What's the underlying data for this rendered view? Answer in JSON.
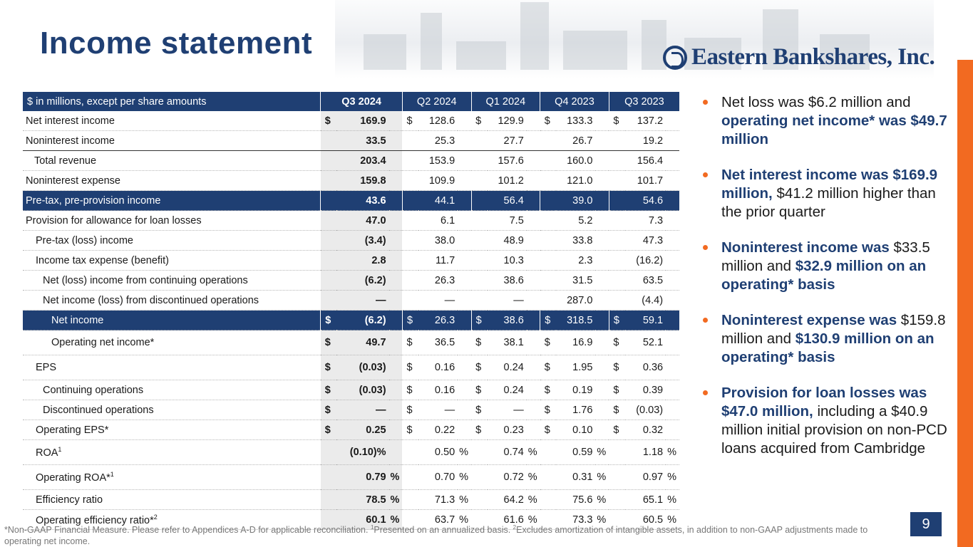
{
  "title": "Income statement",
  "logo_text": "Eastern Bankshares, Inc.",
  "page_number": "9",
  "colors": {
    "navy": "#1f3f73",
    "orange": "#f26a21",
    "shade": "#ebebeb"
  },
  "table": {
    "header": {
      "label": "$ in millions, except per share amounts",
      "cols": [
        "Q3 2024",
        "Q2 2024",
        "Q1 2024",
        "Q4 2023",
        "Q3 2023"
      ]
    },
    "rows": [
      {
        "label": "Net interest income",
        "dollar": true,
        "values": [
          "169.9",
          "128.6",
          "129.9",
          "133.3",
          "137.2"
        ]
      },
      {
        "label": "Noninterest income",
        "values": [
          "33.5",
          "25.3",
          "27.7",
          "26.7",
          "19.2"
        ]
      },
      {
        "label": "Total revenue",
        "values": [
          "203.4",
          "153.9",
          "157.6",
          "160.0",
          "156.4"
        ]
      },
      {
        "label": "Noninterest expense",
        "values": [
          "159.8",
          "109.9",
          "101.2",
          "121.0",
          "101.7"
        ]
      },
      {
        "label": "Pre-tax, pre-provision income",
        "values": [
          "43.6",
          "44.1",
          "56.4",
          "39.0",
          "54.6"
        ]
      },
      {
        "label": "Provision for allowance for loan losses",
        "values": [
          "47.0",
          "6.1",
          "7.5",
          "5.2",
          "7.3"
        ]
      },
      {
        "label": "Pre-tax (loss) income",
        "values": [
          "(3.4)",
          "38.0",
          "48.9",
          "33.8",
          "47.3"
        ]
      },
      {
        "label": "Income tax expense (benefit)",
        "values": [
          "2.8",
          "11.7",
          "10.3",
          "2.3",
          "(16.2)"
        ]
      },
      {
        "label": "Net (loss) income from continuing operations",
        "values": [
          "(6.2)",
          "26.3",
          "38.6",
          "31.5",
          "63.5"
        ]
      },
      {
        "label": "Net income (loss) from discontinued operations",
        "values": [
          "—",
          "—",
          "—",
          "287.0",
          "(4.4)"
        ]
      },
      {
        "label": "Net income",
        "dollar": true,
        "values": [
          "(6.2)",
          "26.3",
          "38.6",
          "318.5",
          "59.1"
        ]
      },
      {
        "label": "Operating net income*",
        "dollar": true,
        "values": [
          "49.7",
          "36.5",
          "38.1",
          "16.9",
          "52.1"
        ]
      },
      {
        "label": "EPS",
        "dollar": true,
        "values": [
          "(0.03)",
          "0.16",
          "0.24",
          "1.95",
          "0.36"
        ]
      },
      {
        "label": "Continuing operations",
        "dollar": true,
        "values": [
          "(0.03)",
          "0.16",
          "0.24",
          "0.19",
          "0.39"
        ]
      },
      {
        "label": "Discontinued operations",
        "dollar": true,
        "values": [
          "—",
          "—",
          "—",
          "1.76",
          "(0.03)"
        ]
      },
      {
        "label": "Operating EPS*",
        "dollar": true,
        "values": [
          "0.25",
          "0.22",
          "0.23",
          "0.10",
          "0.32"
        ]
      },
      {
        "label": "ROA",
        "sup": "1",
        "values": [
          "(0.10)%",
          "0.50",
          "0.74",
          "0.59",
          "1.18"
        ],
        "pct": [
          "",
          "%",
          "%",
          "%",
          "%"
        ]
      },
      {
        "label": "Operating ROA*",
        "sup": "1",
        "values": [
          "0.79",
          "0.70",
          "0.72",
          "0.31",
          "0.97"
        ],
        "pct": [
          "%",
          "%",
          "%",
          "%",
          "%"
        ]
      },
      {
        "label": "Efficiency ratio",
        "values": [
          "78.5",
          "71.3",
          "64.2",
          "75.6",
          "65.1"
        ],
        "pct": [
          "%",
          "%",
          "%",
          "%",
          "%"
        ]
      },
      {
        "label": "Operating efficiency ratio*",
        "sup": "2",
        "values": [
          "60.1",
          "63.7",
          "61.6",
          "73.3",
          "60.5"
        ],
        "pct": [
          "%",
          "%",
          "%",
          "%",
          "%"
        ]
      }
    ],
    "dollar_sign": "$"
  },
  "bullets": [
    [
      {
        "t": "Net loss was $6.2 million and "
      },
      {
        "t": "operating net income* was $49.7 million",
        "em": true
      }
    ],
    [
      {
        "t": "Net interest income was $169.9 million,",
        "em": true
      },
      {
        "t": " $41.2 million higher than the prior quarter"
      }
    ],
    [
      {
        "t": "Noninterest income was",
        "em": true
      },
      {
        "t": " $33.5 million and "
      },
      {
        "t": "$32.9 million on an operating* basis",
        "em": true
      }
    ],
    [
      {
        "t": "Noninterest expense was",
        "em": true
      },
      {
        "t": " $159.8 million and "
      },
      {
        "t": "$130.9 million on an operating* basis",
        "em": true
      }
    ],
    [
      {
        "t": "Provision for loan losses was $47.0 million,",
        "em": true
      },
      {
        "t": " including a $40.9 million initial provision on non-PCD loans acquired from Cambridge"
      }
    ]
  ],
  "footnote": {
    "p1": "*Non-GAAP Financial Measure. Please refer to Appendices A-D for applicable reconciliation. ",
    "s1": "1",
    "p2": "Presented on an annualized basis. ",
    "s2": "2",
    "p3": "Excludes amortization of intangible assets, in addition to non-GAAP adjustments made to operating net income."
  }
}
